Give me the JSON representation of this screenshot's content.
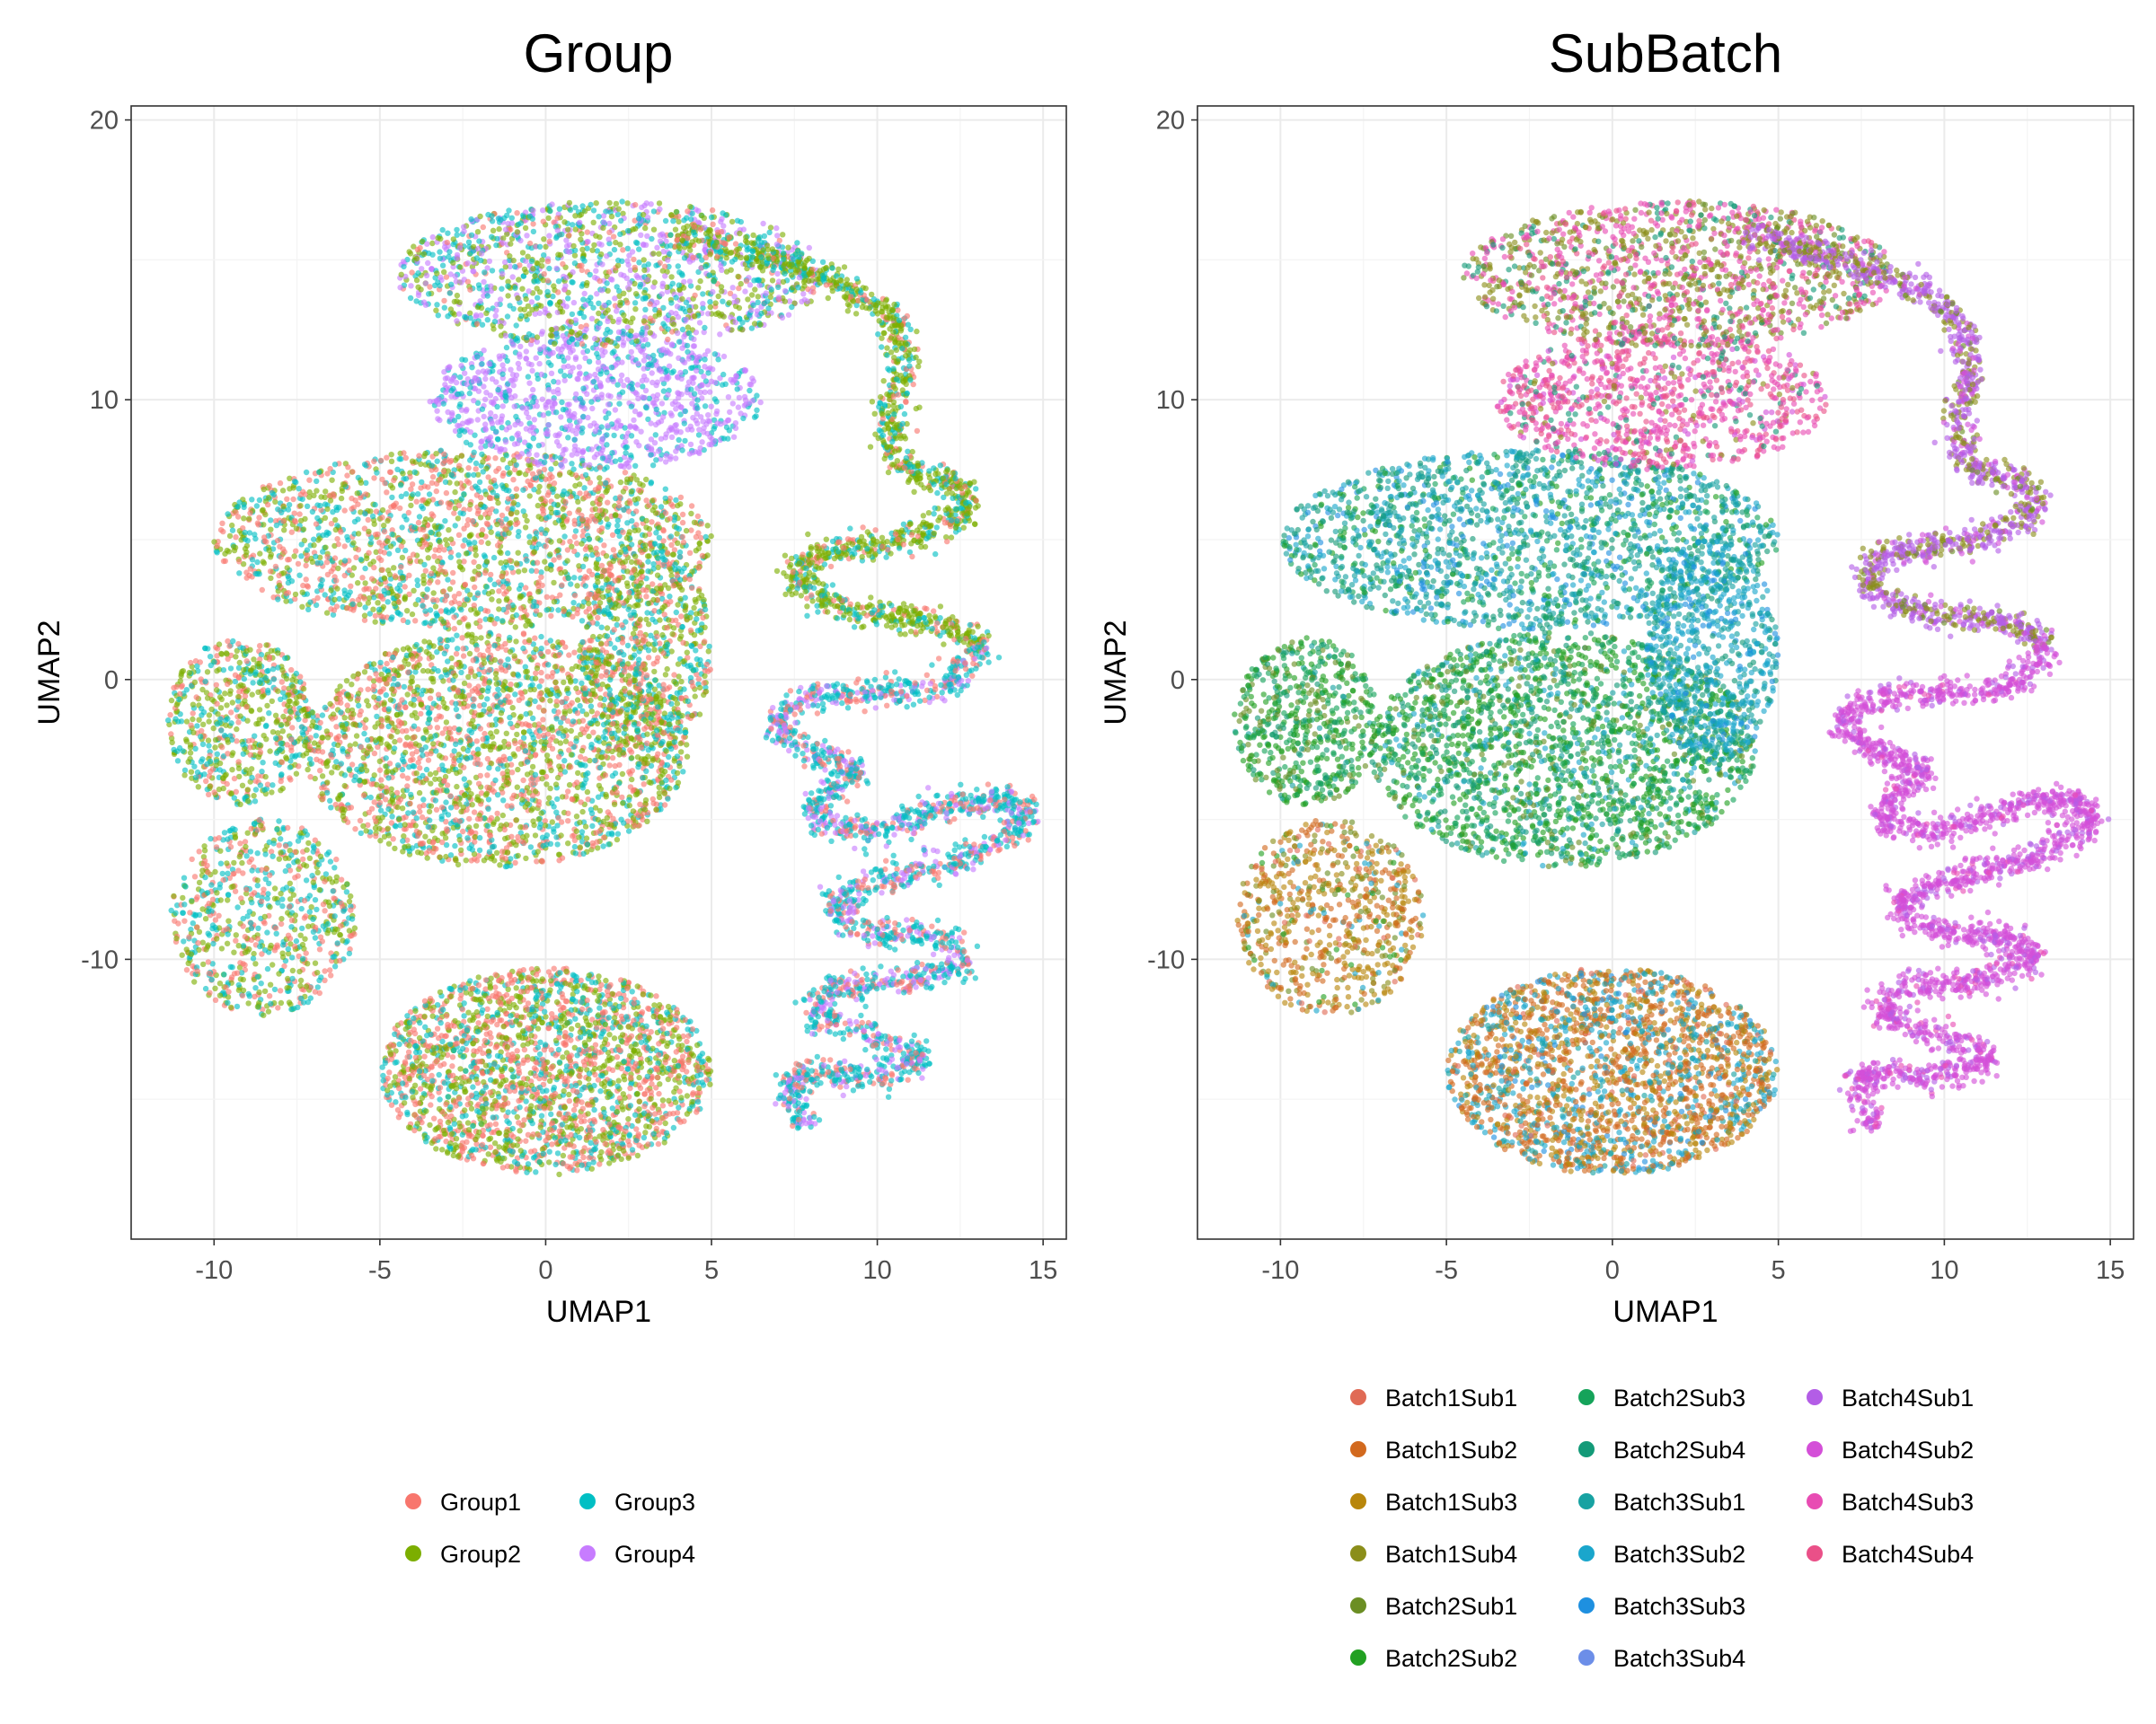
{
  "chart_data": [
    {
      "type": "scatter",
      "title": "Group",
      "xlabel": "UMAP1",
      "ylabel": "UMAP2",
      "xlim": [
        -12.5,
        15.7
      ],
      "ylim": [
        -20,
        20.5
      ],
      "x_ticks": [
        -10,
        -5,
        0,
        5,
        10,
        15
      ],
      "y_ticks": [
        -10,
        0,
        10,
        20
      ],
      "x_tick_labels": [
        "-10",
        "-5",
        "0",
        "5",
        "10",
        "15"
      ],
      "y_tick_labels": [
        "-10",
        "0",
        "10",
        "20"
      ],
      "grid": true,
      "legend_position": "bottom",
      "legend_ncol": 2,
      "series": [
        {
          "name": "Group1",
          "color": "#F8766D"
        },
        {
          "name": "Group2",
          "color": "#7CAE00"
        },
        {
          "name": "Group3",
          "color": "#00BFC4"
        },
        {
          "name": "Group4",
          "color": "#C77CFF"
        }
      ],
      "clusters": [
        {
          "shape": "ellipse",
          "cx": 0,
          "cy": -14,
          "rx": 5,
          "ry": 3.7,
          "n": 2200,
          "mix": [
            0.4,
            0.35,
            0.25,
            0
          ]
        },
        {
          "shape": "ellipse",
          "cx": -1.5,
          "cy": -2.5,
          "rx": 5.8,
          "ry": 4.2,
          "n": 2200,
          "mix": [
            0.35,
            0.4,
            0.25,
            0
          ]
        },
        {
          "shape": "ellipse",
          "cx": -8.5,
          "cy": -8.5,
          "rx": 2.8,
          "ry": 3.5,
          "n": 700,
          "mix": [
            0.3,
            0.35,
            0.35,
            0
          ]
        },
        {
          "shape": "ellipse",
          "cx": -9.2,
          "cy": -1.5,
          "rx": 2.2,
          "ry": 3,
          "n": 600,
          "mix": [
            0.3,
            0.4,
            0.3,
            0
          ]
        },
        {
          "shape": "ellipse",
          "cx": -2.5,
          "cy": 5,
          "rx": 7.5,
          "ry": 3.2,
          "n": 1900,
          "mix": [
            0.35,
            0.35,
            0.3,
            0
          ]
        },
        {
          "shape": "ellipse",
          "cx": 3,
          "cy": 1,
          "rx": 2,
          "ry": 4,
          "n": 700,
          "mix": [
            0.3,
            0.4,
            0.3,
            0
          ]
        },
        {
          "shape": "ellipse",
          "cx": 1.5,
          "cy": 10,
          "rx": 5,
          "ry": 2.5,
          "n": 1000,
          "mix": [
            0,
            0,
            0.35,
            0.65
          ]
        },
        {
          "shape": "ellipse",
          "cx": 2,
          "cy": 14.5,
          "rx": 6.5,
          "ry": 2.6,
          "n": 1400,
          "mix": [
            0.08,
            0.3,
            0.32,
            0.3
          ]
        },
        {
          "shape": "path",
          "width": 0.5,
          "n": 1400,
          "mix": [
            0.15,
            0.6,
            0.25,
            0
          ],
          "points": [
            [
              4,
              16
            ],
            [
              7,
              15
            ],
            [
              9,
              14
            ],
            [
              10.5,
              13
            ],
            [
              10.8,
              11
            ],
            [
              10.3,
              9
            ],
            [
              10.8,
              7.5
            ],
            [
              12.5,
              7
            ],
            [
              12.8,
              6
            ],
            [
              11,
              5
            ],
            [
              8,
              4.5
            ],
            [
              7.5,
              3.5
            ],
            [
              9,
              2.5
            ],
            [
              12,
              2
            ],
            [
              13.2,
              1.2
            ]
          ]
        },
        {
          "shape": "path",
          "width": 0.5,
          "n": 2300,
          "mix": [
            0.25,
            0,
            0.5,
            0.25
          ],
          "points": [
            [
              13.2,
              1.2
            ],
            [
              12,
              -0.3
            ],
            [
              8,
              -0.6
            ],
            [
              6.8,
              -1.5
            ],
            [
              7.8,
              -2.5
            ],
            [
              9.5,
              -3.2
            ],
            [
              8.5,
              -4
            ],
            [
              8,
              -5
            ],
            [
              10,
              -5.5
            ],
            [
              12,
              -4.5
            ],
            [
              14.2,
              -4.2
            ],
            [
              14.5,
              -5.2
            ],
            [
              12.5,
              -6.5
            ],
            [
              10,
              -7.2
            ],
            [
              8.5,
              -8
            ],
            [
              9.5,
              -9
            ],
            [
              12,
              -9.2
            ],
            [
              12.8,
              -10
            ],
            [
              11,
              -10.8
            ],
            [
              8.5,
              -11
            ],
            [
              8,
              -12
            ],
            [
              9.5,
              -12.6
            ],
            [
              11.5,
              -13.5
            ],
            [
              10,
              -14.2
            ],
            [
              7.5,
              -14
            ],
            [
              7.5,
              -15.5
            ],
            [
              8,
              -16
            ]
          ]
        }
      ]
    },
    {
      "type": "scatter",
      "title": "SubBatch",
      "xlabel": "UMAP1",
      "ylabel": "UMAP2",
      "xlim": [
        -12.5,
        15.7
      ],
      "ylim": [
        -20,
        20.5
      ],
      "x_ticks": [
        -10,
        -5,
        0,
        5,
        10,
        15
      ],
      "y_ticks": [
        -10,
        0,
        10,
        20
      ],
      "x_tick_labels": [
        "-10",
        "-5",
        "0",
        "5",
        "10",
        "15"
      ],
      "y_tick_labels": [
        "-10",
        "0",
        "10",
        "20"
      ],
      "grid": true,
      "legend_position": "bottom",
      "legend_ncol": 3,
      "series": [
        {
          "name": "Batch1Sub1",
          "color": "#E06A55"
        },
        {
          "name": "Batch1Sub2",
          "color": "#D2691E"
        },
        {
          "name": "Batch1Sub3",
          "color": "#B8860B"
        },
        {
          "name": "Batch1Sub4",
          "color": "#8B8E1A"
        },
        {
          "name": "Batch2Sub1",
          "color": "#6B8E23"
        },
        {
          "name": "Batch2Sub2",
          "color": "#22A022"
        },
        {
          "name": "Batch2Sub3",
          "color": "#15A35A"
        },
        {
          "name": "Batch2Sub4",
          "color": "#139A78"
        },
        {
          "name": "Batch3Sub1",
          "color": "#17A2A2"
        },
        {
          "name": "Batch3Sub2",
          "color": "#1AA6CC"
        },
        {
          "name": "Batch3Sub3",
          "color": "#1E90E0"
        },
        {
          "name": "Batch3Sub4",
          "color": "#6C8EE8"
        },
        {
          "name": "Batch4Sub1",
          "color": "#B35DE6"
        },
        {
          "name": "Batch4Sub2",
          "color": "#D44FD8"
        },
        {
          "name": "Batch4Sub3",
          "color": "#E84CB3"
        },
        {
          "name": "Batch4Sub4",
          "color": "#EA5088"
        }
      ],
      "clusters": [
        {
          "shape": "ellipse",
          "cx": 0,
          "cy": -14,
          "rx": 5,
          "ry": 3.7,
          "n": 2200,
          "mix": [
            0.05,
            0.35,
            0.25,
            0,
            0,
            0,
            0,
            0,
            0.1,
            0.2,
            0.05,
            0,
            0,
            0,
            0,
            0
          ]
        },
        {
          "shape": "ellipse",
          "cx": -1.5,
          "cy": -2.5,
          "rx": 5.8,
          "ry": 4.2,
          "n": 2200,
          "mix": [
            0,
            0,
            0,
            0,
            0.1,
            0.35,
            0.25,
            0.15,
            0.05,
            0.1,
            0,
            0,
            0,
            0,
            0,
            0
          ]
        },
        {
          "shape": "ellipse",
          "cx": -8.5,
          "cy": -8.5,
          "rx": 2.8,
          "ry": 3.5,
          "n": 700,
          "mix": [
            0.05,
            0.3,
            0.35,
            0.1,
            0.1,
            0.05,
            0,
            0,
            0,
            0.05,
            0,
            0,
            0,
            0,
            0,
            0
          ]
        },
        {
          "shape": "ellipse",
          "cx": -9.2,
          "cy": -1.5,
          "rx": 2.2,
          "ry": 3,
          "n": 600,
          "mix": [
            0,
            0,
            0,
            0,
            0.15,
            0.4,
            0.3,
            0.1,
            0.05,
            0,
            0,
            0,
            0,
            0,
            0,
            0
          ]
        },
        {
          "shape": "ellipse",
          "cx": -2.5,
          "cy": 5,
          "rx": 7.5,
          "ry": 3.2,
          "n": 1900,
          "mix": [
            0,
            0,
            0,
            0,
            0,
            0.1,
            0.15,
            0.2,
            0.25,
            0.2,
            0.1,
            0,
            0,
            0,
            0,
            0
          ]
        },
        {
          "shape": "ellipse",
          "cx": 3,
          "cy": 1,
          "rx": 2,
          "ry": 4,
          "n": 700,
          "mix": [
            0,
            0,
            0,
            0,
            0,
            0,
            0,
            0.1,
            0.35,
            0.45,
            0.1,
            0,
            0,
            0,
            0,
            0
          ]
        },
        {
          "shape": "ellipse",
          "cx": 1.5,
          "cy": 10,
          "rx": 5,
          "ry": 2.5,
          "n": 1000,
          "mix": [
            0,
            0,
            0,
            0.05,
            0,
            0,
            0,
            0.1,
            0,
            0,
            0,
            0,
            0,
            0.1,
            0.45,
            0.3
          ]
        },
        {
          "shape": "ellipse",
          "cx": 2,
          "cy": 14.5,
          "rx": 6.5,
          "ry": 2.6,
          "n": 1400,
          "mix": [
            0,
            0,
            0,
            0.35,
            0.1,
            0,
            0,
            0.15,
            0,
            0,
            0,
            0,
            0,
            0,
            0.3,
            0.1
          ]
        },
        {
          "shape": "path",
          "width": 0.5,
          "n": 1400,
          "mix": [
            0,
            0,
            0,
            0.25,
            0.05,
            0,
            0,
            0,
            0,
            0,
            0,
            0,
            0.6,
            0.1,
            0,
            0
          ]
        },
        {
          "shape": "path",
          "width": 0.5,
          "n": 2300,
          "mix": [
            0,
            0,
            0,
            0,
            0,
            0,
            0,
            0,
            0,
            0,
            0,
            0,
            0.15,
            0.8,
            0.05,
            0
          ]
        }
      ]
    }
  ]
}
